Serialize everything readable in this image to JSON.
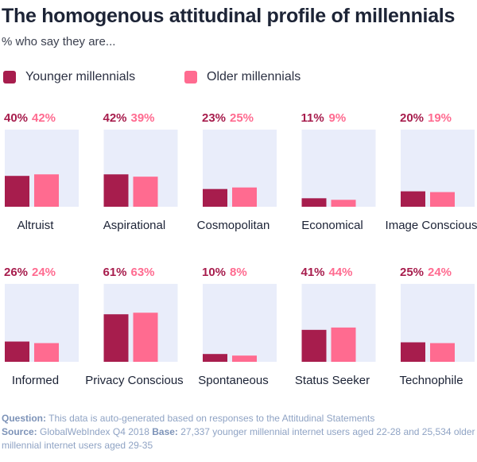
{
  "header": {
    "title": "The homogenous attitudinal profile of millennials",
    "subtitle": "% who say they are..."
  },
  "legend": [
    {
      "name": "Younger millennials",
      "color": "#a71d4d"
    },
    {
      "name": "Older millennials",
      "color": "#ff6b90"
    }
  ],
  "colors": {
    "panel_bg": "#e9edfa",
    "younger": "#a71d4d",
    "older": "#ff6b90",
    "label_younger": "#a71d4d",
    "label_older": "#ff6b90"
  },
  "chart_data": {
    "type": "bar",
    "title": "The homogenous attitudinal profile of millennials",
    "subtitle": "% who say they are...",
    "unit": "%",
    "ylim": [
      0,
      100
    ],
    "series_names": [
      "Younger millennials",
      "Older millennials"
    ],
    "categories": [
      "Altruist",
      "Aspirational",
      "Cosmopolitan",
      "Economical",
      "Image Conscious",
      "Informed",
      "Privacy Conscious",
      "Spontaneous",
      "Status Seeker",
      "Technophile"
    ],
    "series": [
      {
        "name": "Younger millennials",
        "values": [
          40,
          42,
          23,
          11,
          20,
          26,
          61,
          10,
          41,
          25
        ]
      },
      {
        "name": "Older millennials",
        "values": [
          42,
          39,
          25,
          9,
          19,
          24,
          63,
          8,
          44,
          24
        ]
      }
    ],
    "labels": [
      [
        "40%",
        "42%"
      ],
      [
        "42%",
        "39%"
      ],
      [
        "23%",
        "25%"
      ],
      [
        "11%",
        "9%"
      ],
      [
        "20%",
        "19%"
      ],
      [
        "26%",
        "24%"
      ],
      [
        "61%",
        "63%"
      ],
      [
        "10%",
        "8%"
      ],
      [
        "41%",
        "44%"
      ],
      [
        "25%",
        "24%"
      ]
    ]
  },
  "footer": {
    "question_label": "Question:",
    "question_text": " This data is auto-generated based on responses to the Attitudinal Statements",
    "source_label": "Source:",
    "source_text": " GlobalWebIndex Q4 2018 ",
    "base_label": "Base:",
    "base_text": " 27,337 younger millennial internet users aged 22-28 and 25,534 older millennial internet users aged 29-35"
  }
}
